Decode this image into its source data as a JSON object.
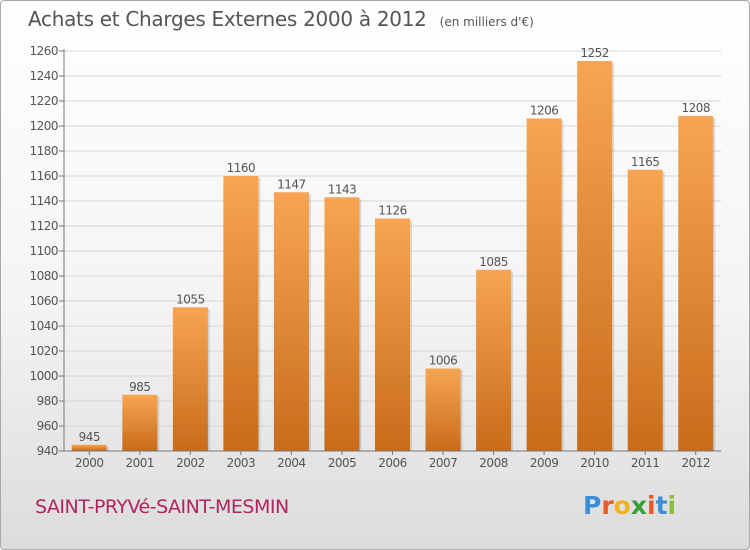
{
  "header": {
    "title": "Achats et Charges Externes 2000 à 2012",
    "unit": "(en milliers d'€)"
  },
  "footer": {
    "town": "SAINT-PRYVé-SAINT-MESMIN",
    "logo": "Proxiti"
  },
  "colors": {
    "bar_top": "#f7a552",
    "bar_bottom": "#c86c1a",
    "text": "#555555",
    "town": "#b2245d"
  },
  "chart_data": {
    "type": "bar",
    "categories": [
      "2000",
      "2001",
      "2002",
      "2003",
      "2004",
      "2005",
      "2006",
      "2007",
      "2008",
      "2009",
      "2010",
      "2011",
      "2012"
    ],
    "values": [
      945,
      985,
      1055,
      1160,
      1147,
      1143,
      1126,
      1006,
      1085,
      1206,
      1252,
      1165,
      1208
    ],
    "ylim": [
      940,
      1260
    ],
    "yticks": [
      940,
      960,
      980,
      1000,
      1020,
      1040,
      1060,
      1080,
      1100,
      1120,
      1140,
      1160,
      1180,
      1200,
      1220,
      1240,
      1260
    ],
    "grid": true,
    "data_labels": true,
    "title": "Achats et Charges Externes 2000 à 2012",
    "xlabel": "",
    "ylabel": ""
  }
}
